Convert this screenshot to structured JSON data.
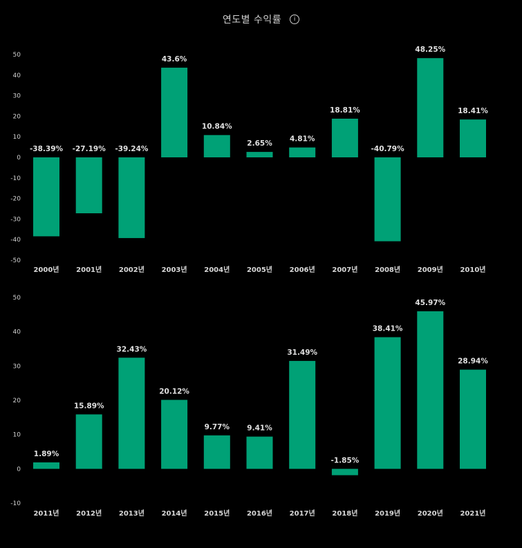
{
  "header": {
    "title": "연도별 수익률",
    "info_icon": "info-icon",
    "info_glyph": "i"
  },
  "colors": {
    "background": "#000000",
    "bar": "#00a176",
    "text": "#d8d8d8"
  },
  "chart_data": [
    {
      "type": "bar",
      "categories": [
        "2000년",
        "2001년",
        "2002년",
        "2003년",
        "2004년",
        "2005년",
        "2006년",
        "2007년",
        "2008년",
        "2009년",
        "2010년"
      ],
      "values": [
        -38.39,
        -27.19,
        -39.24,
        43.6,
        10.84,
        2.65,
        4.81,
        18.81,
        -40.79,
        48.25,
        18.41
      ],
      "data_labels": [
        "-38.39%",
        "-27.19%",
        "-39.24%",
        "43.6%",
        "10.84%",
        "2.65%",
        "4.81%",
        "18.81%",
        "-40.79%",
        "48.25%",
        "18.41%"
      ],
      "yticks": [
        50,
        40,
        30,
        20,
        10,
        0,
        -10,
        -20,
        -30,
        -40,
        -50
      ],
      "ylim": [
        -50,
        50
      ],
      "grid": false,
      "legend": "none"
    },
    {
      "type": "bar",
      "categories": [
        "2011년",
        "2012년",
        "2013년",
        "2014년",
        "2015년",
        "2016년",
        "2017년",
        "2018년",
        "2019년",
        "2020년",
        "2021년"
      ],
      "values": [
        1.89,
        15.89,
        32.43,
        20.12,
        9.77,
        9.41,
        31.49,
        -1.85,
        38.41,
        45.97,
        28.94
      ],
      "data_labels": [
        "1.89%",
        "15.89%",
        "32.43%",
        "20.12%",
        "9.77%",
        "9.41%",
        "31.49%",
        "-1.85%",
        "38.41%",
        "45.97%",
        "28.94%"
      ],
      "yticks": [
        50,
        40,
        30,
        20,
        10,
        0,
        -10
      ],
      "ylim": [
        -10,
        50
      ],
      "grid": false,
      "legend": "none"
    }
  ]
}
